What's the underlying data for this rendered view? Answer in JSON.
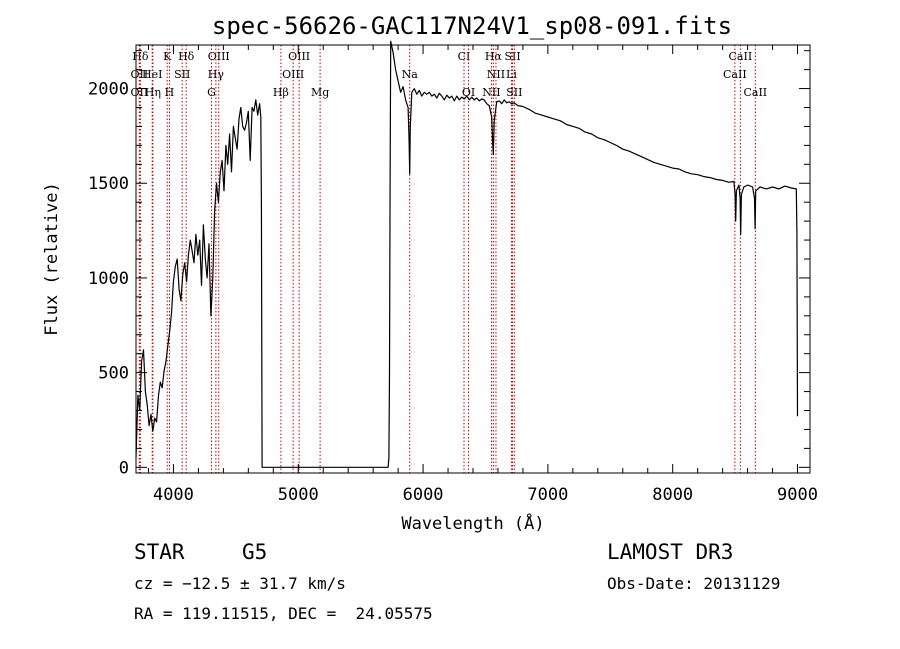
{
  "chart_data": {
    "type": "line",
    "title": "spec-56626-GAC117N24V1_sp08-091.fits",
    "xlabel": "Wavelength (Å)",
    "ylabel": "Flux (relative)",
    "xlim": [
      3700,
      9100
    ],
    "ylim": [
      -30,
      2230
    ],
    "xticks": [
      4000,
      5000,
      6000,
      7000,
      8000,
      9000
    ],
    "yticks": [
      0,
      500,
      1000,
      1500,
      2000
    ],
    "series": [
      {
        "name": "flux",
        "points": [
          [
            3700,
            50
          ],
          [
            3715,
            380
          ],
          [
            3730,
            300
          ],
          [
            3745,
            560
          ],
          [
            3760,
            620
          ],
          [
            3775,
            400
          ],
          [
            3790,
            330
          ],
          [
            3805,
            220
          ],
          [
            3820,
            280
          ],
          [
            3835,
            190
          ],
          [
            3850,
            260
          ],
          [
            3865,
            240
          ],
          [
            3880,
            380
          ],
          [
            3895,
            450
          ],
          [
            3910,
            420
          ],
          [
            3925,
            510
          ],
          [
            3940,
            560
          ],
          [
            3955,
            640
          ],
          [
            3970,
            720
          ],
          [
            3985,
            820
          ],
          [
            4000,
            980
          ],
          [
            4015,
            1060
          ],
          [
            4030,
            1100
          ],
          [
            4045,
            940
          ],
          [
            4060,
            880
          ],
          [
            4075,
            1020
          ],
          [
            4090,
            1080
          ],
          [
            4105,
            980
          ],
          [
            4120,
            1120
          ],
          [
            4135,
            1200
          ],
          [
            4150,
            1140
          ],
          [
            4165,
            1080
          ],
          [
            4180,
            1230
          ],
          [
            4195,
            1120
          ],
          [
            4210,
            1200
          ],
          [
            4225,
            960
          ],
          [
            4240,
            1280
          ],
          [
            4255,
            1100
          ],
          [
            4270,
            1000
          ],
          [
            4285,
            1180
          ],
          [
            4300,
            800
          ],
          [
            4315,
            1000
          ],
          [
            4330,
            1350
          ],
          [
            4345,
            1500
          ],
          [
            4360,
            1400
          ],
          [
            4375,
            1560
          ],
          [
            4390,
            1620
          ],
          [
            4405,
            1460
          ],
          [
            4420,
            1700
          ],
          [
            4435,
            1600
          ],
          [
            4450,
            1760
          ],
          [
            4465,
            1560
          ],
          [
            4480,
            1800
          ],
          [
            4495,
            1740
          ],
          [
            4510,
            1680
          ],
          [
            4525,
            1840
          ],
          [
            4540,
            1900
          ],
          [
            4555,
            1800
          ],
          [
            4570,
            1780
          ],
          [
            4585,
            1820
          ],
          [
            4600,
            1880
          ],
          [
            4615,
            1620
          ],
          [
            4630,
            1900
          ],
          [
            4645,
            1880
          ],
          [
            4660,
            1940
          ],
          [
            4675,
            1860
          ],
          [
            4690,
            1920
          ],
          [
            4700,
            1850
          ],
          [
            4705,
            1400
          ],
          [
            4710,
            0
          ],
          [
            4720,
            0
          ],
          [
            5000,
            0
          ],
          [
            5400,
            0
          ],
          [
            5700,
            0
          ],
          [
            5720,
            0
          ],
          [
            5726,
            50
          ],
          [
            5731,
            500
          ],
          [
            5736,
            1500
          ],
          [
            5741,
            2250
          ],
          [
            5760,
            2190
          ],
          [
            5780,
            2100
          ],
          [
            5800,
            2040
          ],
          [
            5820,
            1980
          ],
          [
            5840,
            2010
          ],
          [
            5860,
            1940
          ],
          [
            5880,
            1900
          ],
          [
            5888,
            1720
          ],
          [
            5893,
            1550
          ],
          [
            5898,
            1800
          ],
          [
            5910,
            1980
          ],
          [
            5930,
            2000
          ],
          [
            5950,
            1970
          ],
          [
            5970,
            1990
          ],
          [
            5990,
            1960
          ],
          [
            6010,
            1980
          ],
          [
            6030,
            1970
          ],
          [
            6050,
            1980
          ],
          [
            6070,
            1960
          ],
          [
            6090,
            1970
          ],
          [
            6110,
            1950
          ],
          [
            6130,
            1975
          ],
          [
            6150,
            1960
          ],
          [
            6170,
            1940
          ],
          [
            6190,
            1965
          ],
          [
            6210,
            1950
          ],
          [
            6230,
            1960
          ],
          [
            6250,
            1935
          ],
          [
            6270,
            1960
          ],
          [
            6290,
            1940
          ],
          [
            6310,
            1955
          ],
          [
            6330,
            1945
          ],
          [
            6350,
            1960
          ],
          [
            6370,
            1940
          ],
          [
            6390,
            1955
          ],
          [
            6410,
            1940
          ],
          [
            6430,
            1950
          ],
          [
            6450,
            1935
          ],
          [
            6470,
            1945
          ],
          [
            6490,
            1940
          ],
          [
            6510,
            1920
          ],
          [
            6530,
            1910
          ],
          [
            6550,
            1850
          ],
          [
            6557,
            1720
          ],
          [
            6563,
            1650
          ],
          [
            6570,
            1830
          ],
          [
            6590,
            1930
          ],
          [
            6610,
            1935
          ],
          [
            6630,
            1920
          ],
          [
            6650,
            1940
          ],
          [
            6670,
            1925
          ],
          [
            6690,
            1930
          ],
          [
            6710,
            1920
          ],
          [
            6730,
            1925
          ],
          [
            6760,
            1910
          ],
          [
            6800,
            1905
          ],
          [
            6850,
            1890
          ],
          [
            6900,
            1870
          ],
          [
            6950,
            1860
          ],
          [
            7000,
            1850
          ],
          [
            7050,
            1840
          ],
          [
            7100,
            1830
          ],
          [
            7150,
            1810
          ],
          [
            7200,
            1800
          ],
          [
            7250,
            1790
          ],
          [
            7300,
            1770
          ],
          [
            7350,
            1760
          ],
          [
            7400,
            1740
          ],
          [
            7450,
            1730
          ],
          [
            7500,
            1715
          ],
          [
            7550,
            1700
          ],
          [
            7600,
            1680
          ],
          [
            7650,
            1670
          ],
          [
            7700,
            1655
          ],
          [
            7750,
            1640
          ],
          [
            7800,
            1625
          ],
          [
            7850,
            1610
          ],
          [
            7900,
            1600
          ],
          [
            7950,
            1590
          ],
          [
            8000,
            1580
          ],
          [
            8050,
            1575
          ],
          [
            8100,
            1560
          ],
          [
            8150,
            1550
          ],
          [
            8200,
            1545
          ],
          [
            8250,
            1535
          ],
          [
            8300,
            1530
          ],
          [
            8350,
            1520
          ],
          [
            8400,
            1515
          ],
          [
            8450,
            1505
          ],
          [
            8490,
            1510
          ],
          [
            8500,
            1440
          ],
          [
            8505,
            1300
          ],
          [
            8510,
            1460
          ],
          [
            8530,
            1490
          ],
          [
            8540,
            1420
          ],
          [
            8545,
            1230
          ],
          [
            8550,
            1440
          ],
          [
            8570,
            1480
          ],
          [
            8600,
            1490
          ],
          [
            8640,
            1480
          ],
          [
            8655,
            1420
          ],
          [
            8660,
            1260
          ],
          [
            8665,
            1460
          ],
          [
            8700,
            1480
          ],
          [
            8750,
            1470
          ],
          [
            8800,
            1480
          ],
          [
            8850,
            1470
          ],
          [
            8900,
            1485
          ],
          [
            8950,
            1475
          ],
          [
            8990,
            1470
          ],
          [
            8995,
            1250
          ],
          [
            9000,
            270
          ]
        ]
      }
    ],
    "spectral_lines": [
      {
        "label": "Hδ",
        "x": 3735,
        "row": 0
      },
      {
        "label": "K",
        "x": 3950,
        "row": 0
      },
      {
        "label": "Hδ",
        "x": 4102,
        "row": 0
      },
      {
        "label": "OIII",
        "x": 4363,
        "row": 0
      },
      {
        "label": "OIII",
        "x": 5007,
        "row": 0
      },
      {
        "label": "CI",
        "x": 6328,
        "row": 0
      },
      {
        "label": "Hα",
        "x": 6563,
        "row": 0
      },
      {
        "label": "SII",
        "x": 6717,
        "row": 0
      },
      {
        "label": "CaII",
        "x": 8542,
        "row": 0
      },
      {
        "label": "OII",
        "x": 3727,
        "row": 1
      },
      {
        "label": "HeI",
        "x": 3830,
        "row": 1
      },
      {
        "label": "SII",
        "x": 4070,
        "row": 1
      },
      {
        "label": "Hγ",
        "x": 4340,
        "row": 1
      },
      {
        "label": "OIII",
        "x": 4959,
        "row": 1
      },
      {
        "label": "Na",
        "x": 5893,
        "row": 1
      },
      {
        "label": "NII",
        "x": 6584,
        "row": 1
      },
      {
        "label": "Li",
        "x": 6708,
        "row": 1
      },
      {
        "label": "CaII",
        "x": 8498,
        "row": 1
      },
      {
        "label": "OII",
        "x": 3727,
        "row": 2
      },
      {
        "label": "Hη",
        "x": 3835,
        "row": 2
      },
      {
        "label": "H",
        "x": 3968,
        "row": 2
      },
      {
        "label": "G",
        "x": 4305,
        "row": 2
      },
      {
        "label": "Hβ",
        "x": 4861,
        "row": 2
      },
      {
        "label": "Mg",
        "x": 5175,
        "row": 2
      },
      {
        "label": "OI",
        "x": 6364,
        "row": 2
      },
      {
        "label": "NII",
        "x": 6548,
        "row": 2
      },
      {
        "label": "SII",
        "x": 6731,
        "row": 2
      },
      {
        "label": "CaII",
        "x": 8662,
        "row": 2
      }
    ],
    "line_color": "#000000",
    "marker_color": "#cc0000"
  },
  "info": {
    "object_class": "STAR",
    "subclass": "G5",
    "survey": "LAMOST DR3",
    "cz": "cz = −12.5 ± 31.7 km/s",
    "obs_date": "Obs-Date: 20131129",
    "coords": "RA = 119.11515, DEC =  24.05575"
  }
}
